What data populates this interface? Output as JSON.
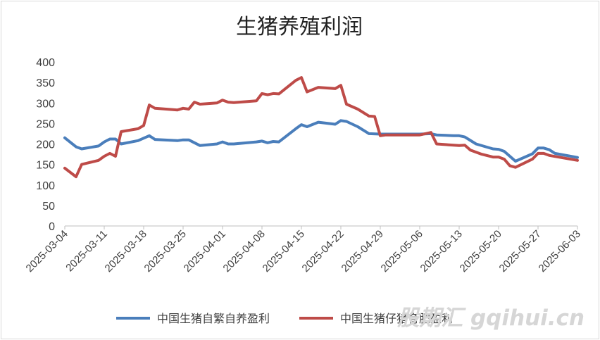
{
  "chart_data": {
    "type": "line",
    "title": "生猪养殖利润",
    "xlabel": "",
    "ylabel": "",
    "ylim": [
      0,
      400
    ],
    "yticks": [
      0,
      50,
      100,
      150,
      200,
      250,
      300,
      350,
      400
    ],
    "xlim": [
      "2025-03-04",
      "2025-06-03"
    ],
    "xticks": [
      "2025-03-04",
      "2025-03-11",
      "2025-03-18",
      "2025-03-25",
      "2025-04-01",
      "2025-04-08",
      "2025-04-15",
      "2025-04-22",
      "2025-04-29",
      "2025-05-06",
      "2025-05-13",
      "2025-05-20",
      "2025-05-27",
      "2025-06-03"
    ],
    "grid": false,
    "legend": "bottom",
    "series": [
      {
        "name": "中国生猪自繁自养盈利",
        "color": "#4a7ebb",
        "points": [
          [
            "2025-03-04",
            215
          ],
          [
            "2025-03-06",
            193
          ],
          [
            "2025-03-07",
            188
          ],
          [
            "2025-03-10",
            195
          ],
          [
            "2025-03-11",
            205
          ],
          [
            "2025-03-12",
            212
          ],
          [
            "2025-03-13",
            212
          ],
          [
            "2025-03-14",
            200
          ],
          [
            "2025-03-17",
            208
          ],
          [
            "2025-03-19",
            220
          ],
          [
            "2025-03-20",
            211
          ],
          [
            "2025-03-24",
            208
          ],
          [
            "2025-03-25",
            210
          ],
          [
            "2025-03-26",
            210
          ],
          [
            "2025-03-28",
            196
          ],
          [
            "2025-03-31",
            200
          ],
          [
            "2025-04-01",
            205
          ],
          [
            "2025-04-02",
            200
          ],
          [
            "2025-04-03",
            200
          ],
          [
            "2025-04-07",
            205
          ],
          [
            "2025-04-08",
            207
          ],
          [
            "2025-04-09",
            203
          ],
          [
            "2025-04-10",
            206
          ],
          [
            "2025-04-11",
            205
          ],
          [
            "2025-04-14",
            237
          ],
          [
            "2025-04-15",
            247
          ],
          [
            "2025-04-16",
            242
          ],
          [
            "2025-04-18",
            253
          ],
          [
            "2025-04-21",
            248
          ],
          [
            "2025-04-22",
            257
          ],
          [
            "2025-04-23",
            255
          ],
          [
            "2025-04-25",
            242
          ],
          [
            "2025-04-27",
            225
          ],
          [
            "2025-04-29",
            224
          ],
          [
            "2025-04-30",
            224
          ],
          [
            "2025-05-06",
            224
          ],
          [
            "2025-05-08",
            225
          ],
          [
            "2025-05-09",
            222
          ],
          [
            "2025-05-12",
            220
          ],
          [
            "2025-05-13",
            220
          ],
          [
            "2025-05-14",
            217
          ],
          [
            "2025-05-16",
            200
          ],
          [
            "2025-05-19",
            188
          ],
          [
            "2025-05-20",
            187
          ],
          [
            "2025-05-21",
            182
          ],
          [
            "2025-05-23",
            158
          ],
          [
            "2025-05-26",
            176
          ],
          [
            "2025-05-27",
            190
          ],
          [
            "2025-05-28",
            190
          ],
          [
            "2025-05-29",
            186
          ],
          [
            "2025-05-30",
            177
          ],
          [
            "2025-06-03",
            167
          ]
        ]
      },
      {
        "name": "中国生猪仔猪育肥盈利",
        "color": "#be4b48",
        "points": [
          [
            "2025-03-04",
            141
          ],
          [
            "2025-03-06",
            120
          ],
          [
            "2025-03-07",
            150
          ],
          [
            "2025-03-10",
            160
          ],
          [
            "2025-03-11",
            170
          ],
          [
            "2025-03-12",
            177
          ],
          [
            "2025-03-13",
            170
          ],
          [
            "2025-03-14",
            230
          ],
          [
            "2025-03-17",
            237
          ],
          [
            "2025-03-18",
            245
          ],
          [
            "2025-03-19",
            295
          ],
          [
            "2025-03-20",
            287
          ],
          [
            "2025-03-24",
            283
          ],
          [
            "2025-03-25",
            287
          ],
          [
            "2025-03-26",
            285
          ],
          [
            "2025-03-27",
            302
          ],
          [
            "2025-03-28",
            297
          ],
          [
            "2025-03-31",
            300
          ],
          [
            "2025-04-01",
            307
          ],
          [
            "2025-04-02",
            302
          ],
          [
            "2025-04-03",
            301
          ],
          [
            "2025-04-07",
            305
          ],
          [
            "2025-04-08",
            323
          ],
          [
            "2025-04-09",
            320
          ],
          [
            "2025-04-10",
            323
          ],
          [
            "2025-04-11",
            322
          ],
          [
            "2025-04-14",
            355
          ],
          [
            "2025-04-15",
            362
          ],
          [
            "2025-04-16",
            327
          ],
          [
            "2025-04-18",
            338
          ],
          [
            "2025-04-21",
            335
          ],
          [
            "2025-04-22",
            343
          ],
          [
            "2025-04-23",
            297
          ],
          [
            "2025-04-25",
            285
          ],
          [
            "2025-04-27",
            268
          ],
          [
            "2025-04-28",
            267
          ],
          [
            "2025-04-29",
            220
          ],
          [
            "2025-04-30",
            222
          ],
          [
            "2025-05-06",
            222
          ],
          [
            "2025-05-08",
            228
          ],
          [
            "2025-05-09",
            200
          ],
          [
            "2025-05-13",
            196
          ],
          [
            "2025-05-14",
            197
          ],
          [
            "2025-05-15",
            185
          ],
          [
            "2025-05-17",
            175
          ],
          [
            "2025-05-19",
            168
          ],
          [
            "2025-05-20",
            168
          ],
          [
            "2025-05-21",
            163
          ],
          [
            "2025-05-22",
            147
          ],
          [
            "2025-05-23",
            143
          ],
          [
            "2025-05-26",
            163
          ],
          [
            "2025-05-27",
            177
          ],
          [
            "2025-05-28",
            177
          ],
          [
            "2025-05-29",
            172
          ],
          [
            "2025-06-03",
            160
          ]
        ]
      }
    ]
  },
  "watermark": "股期汇 gqihui.cn"
}
